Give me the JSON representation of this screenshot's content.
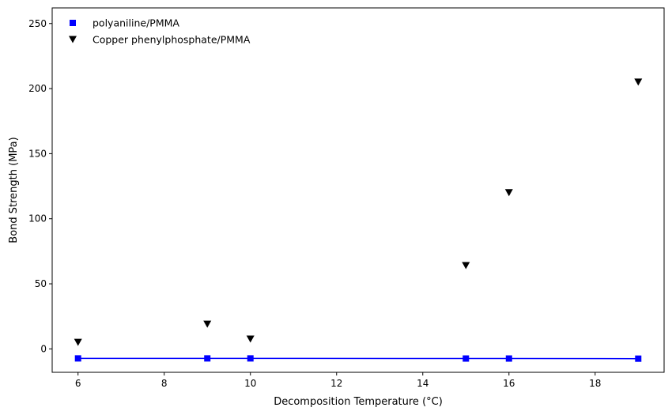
{
  "chart_data": {
    "type": "scatter",
    "title": "",
    "xlabel": "Decomposition Temperature (°C)",
    "ylabel": "Bond Strength (MPa)",
    "xlim": [
      5.4,
      19.6
    ],
    "ylim": [
      -18,
      262
    ],
    "xticks": [
      6,
      8,
      10,
      12,
      14,
      16,
      18
    ],
    "yticks": [
      0,
      50,
      100,
      150,
      200,
      250
    ],
    "grid": false,
    "legend_position": "top-left",
    "series": [
      {
        "name": "polyaniline/PMMA",
        "marker": "square",
        "color": "#0000ff",
        "line": true,
        "x": [
          6,
          9,
          10,
          15,
          16,
          19
        ],
        "y": [
          -7.3,
          -7.3,
          -7.3,
          -7.4,
          -7.4,
          -7.5
        ]
      },
      {
        "name": "Copper phenylphosphate/PMMA",
        "marker": "triangle-down",
        "color": "#000000",
        "line": false,
        "x": [
          6,
          9,
          10,
          15,
          16,
          19
        ],
        "y": [
          5,
          19,
          7.5,
          64,
          120,
          205
        ]
      }
    ]
  }
}
